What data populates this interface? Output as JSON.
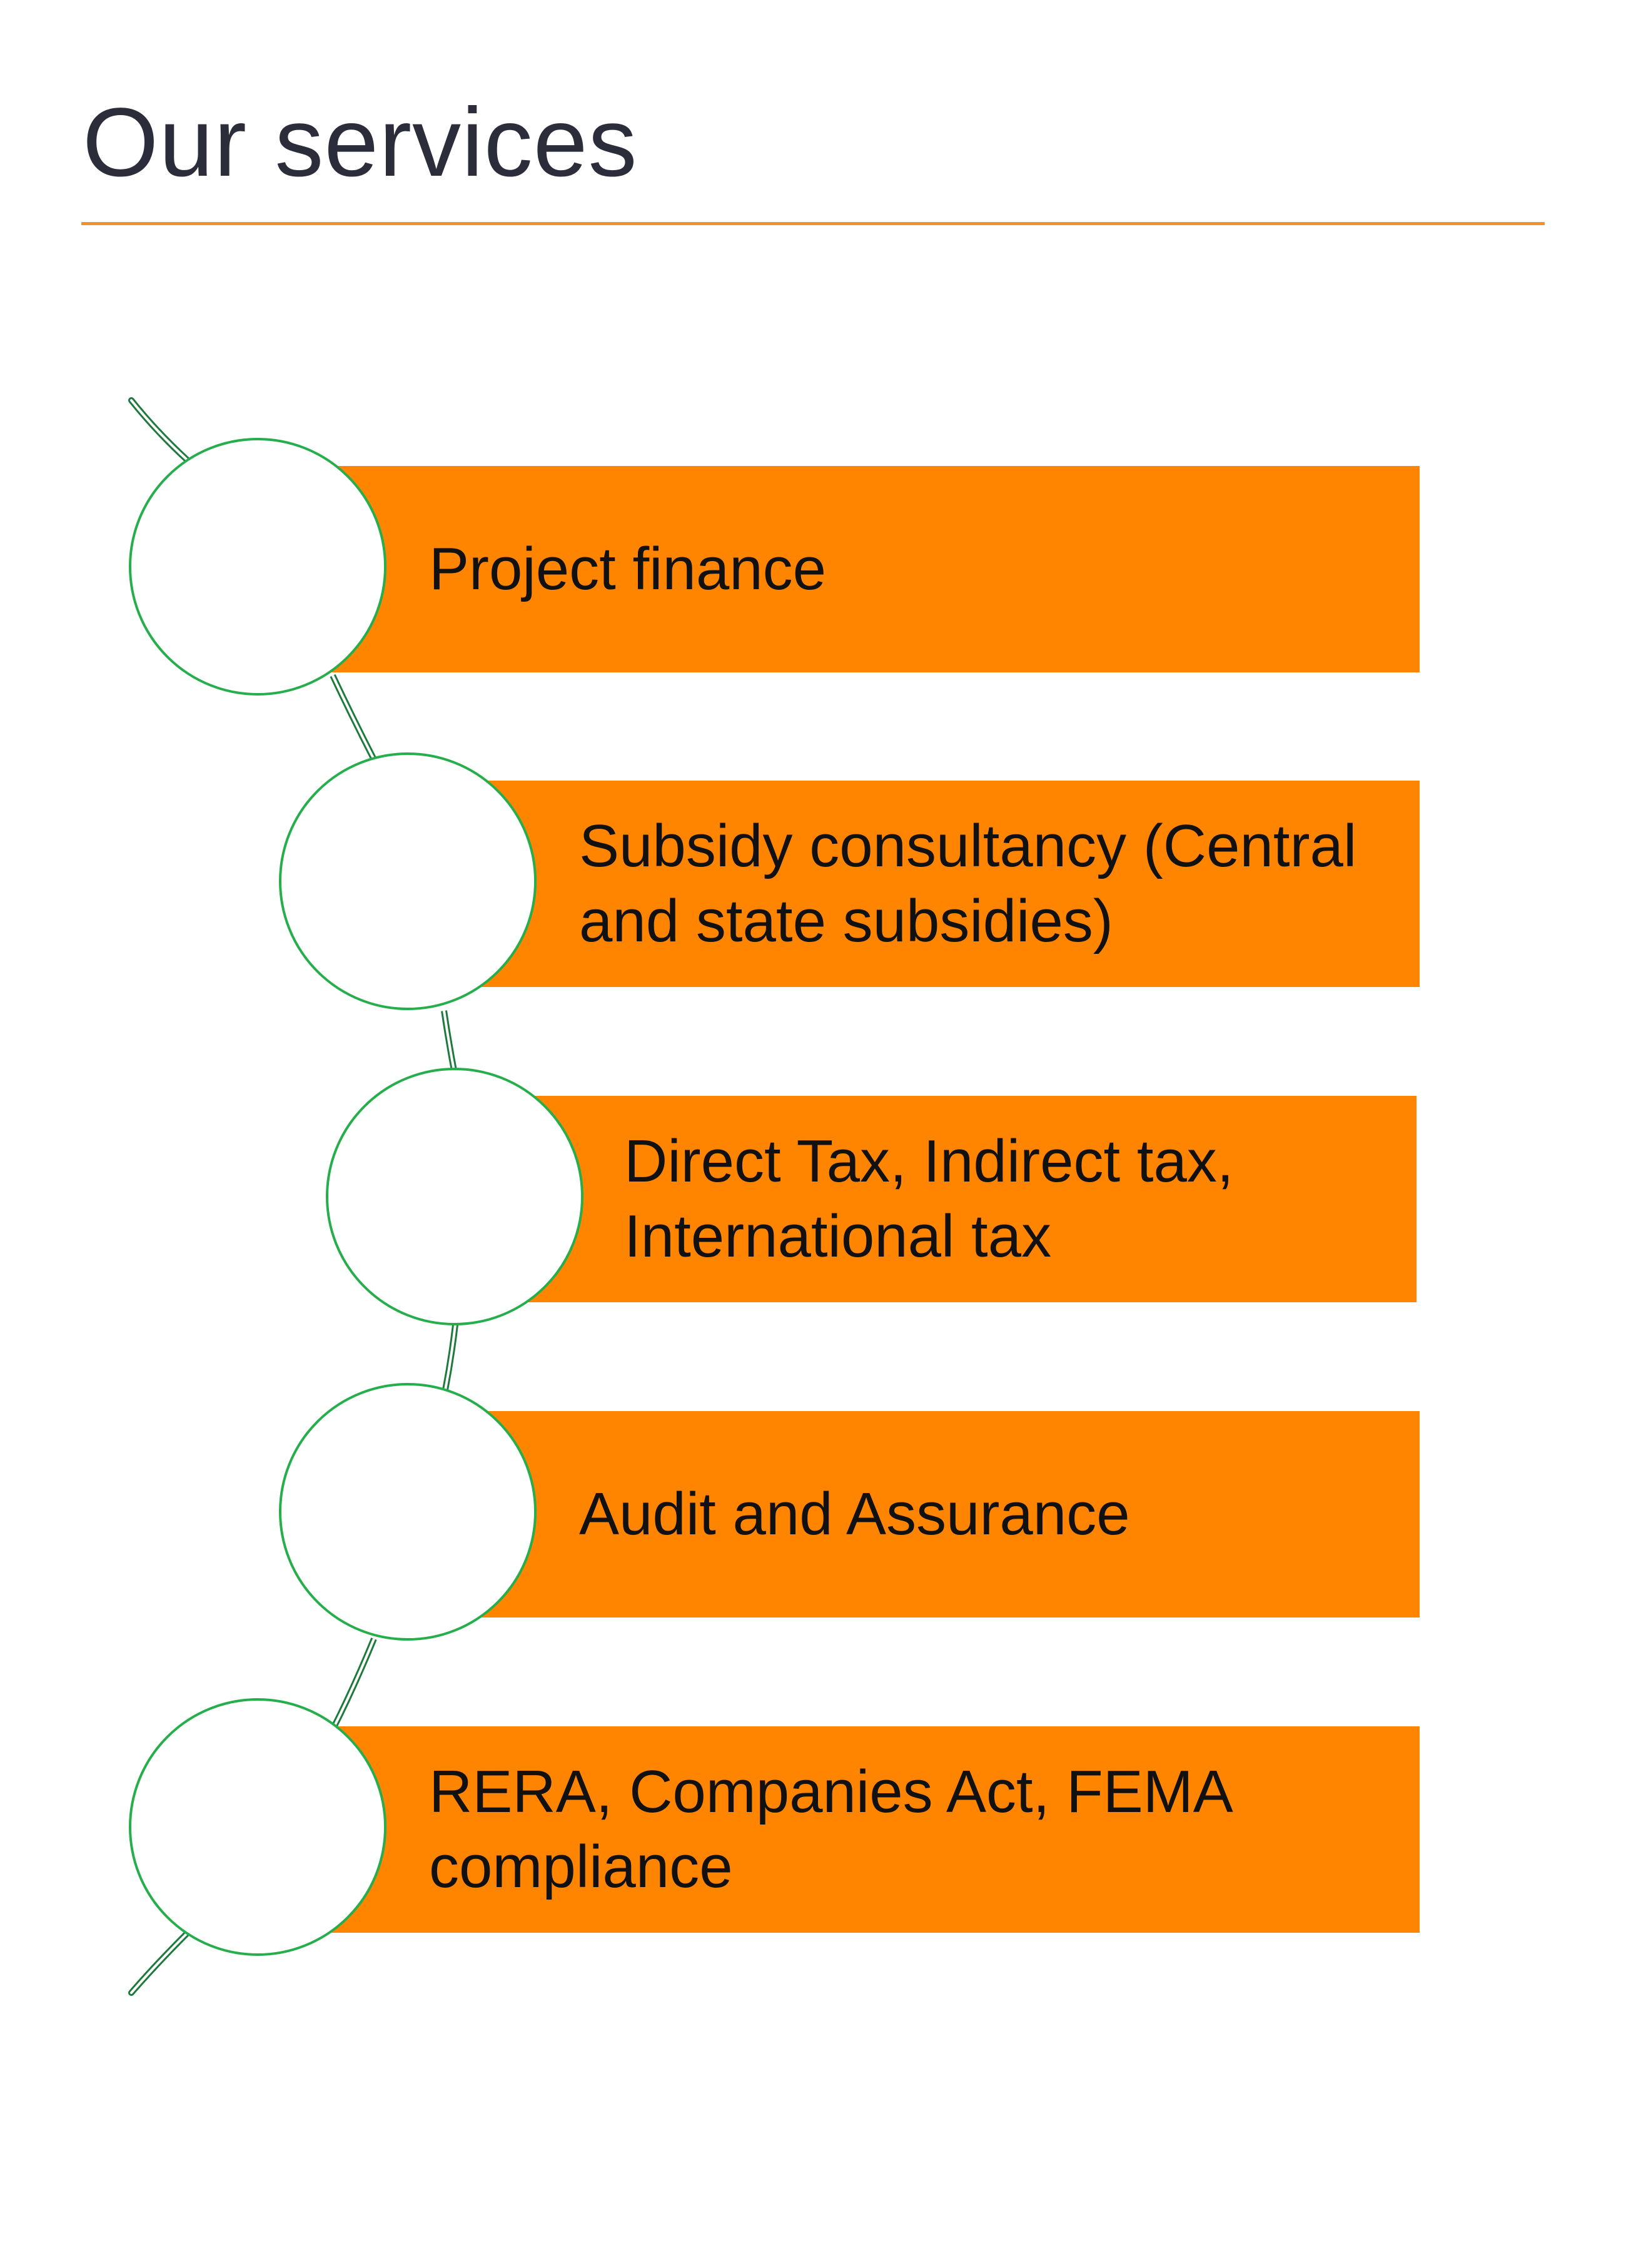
{
  "title": "Our services",
  "colors": {
    "accent": "#ff8400",
    "rule": "#f0912e",
    "node_border": "#26ad4c",
    "connector": "#1e7a3c"
  },
  "services": [
    {
      "label": "Project finance"
    },
    {
      "label": "Subsidy consultancy (Central and state subsidies)"
    },
    {
      "label": "Direct Tax, Indirect tax, International tax"
    },
    {
      "label": "Audit and Assurance"
    },
    {
      "label": "RERA, Companies Act, FEMA compliance"
    }
  ]
}
